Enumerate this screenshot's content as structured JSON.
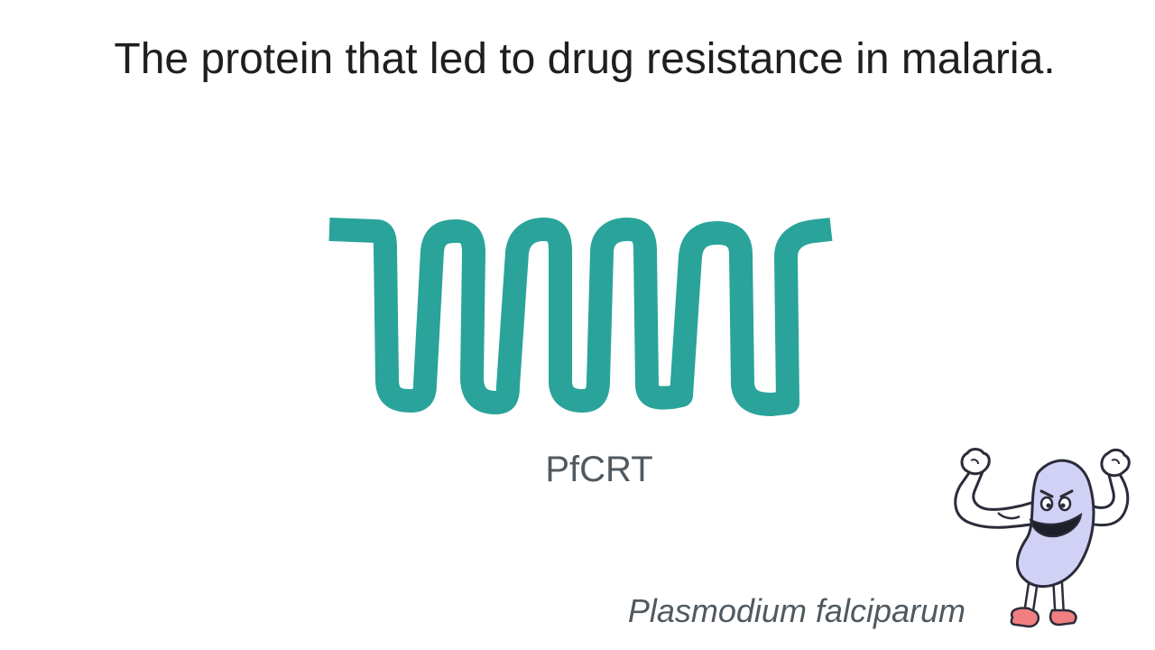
{
  "slide": {
    "title": "The protein that led to drug resistance in malaria.",
    "protein_name": "PfCRT",
    "organism_name": "Plasmodium falciparum"
  },
  "figure": {
    "protein_icon": "transmembrane-protein-icon",
    "mascot_icon": "flexing-parasite-mascot-icon"
  },
  "colors": {
    "protein": "#2aa39b",
    "title_text": "#1f1f1f",
    "label_text": "#505960",
    "mascot_body": "#d1d1f5",
    "mascot_outline": "#2b2b3a",
    "mascot_shoes": "#f27f7f"
  }
}
